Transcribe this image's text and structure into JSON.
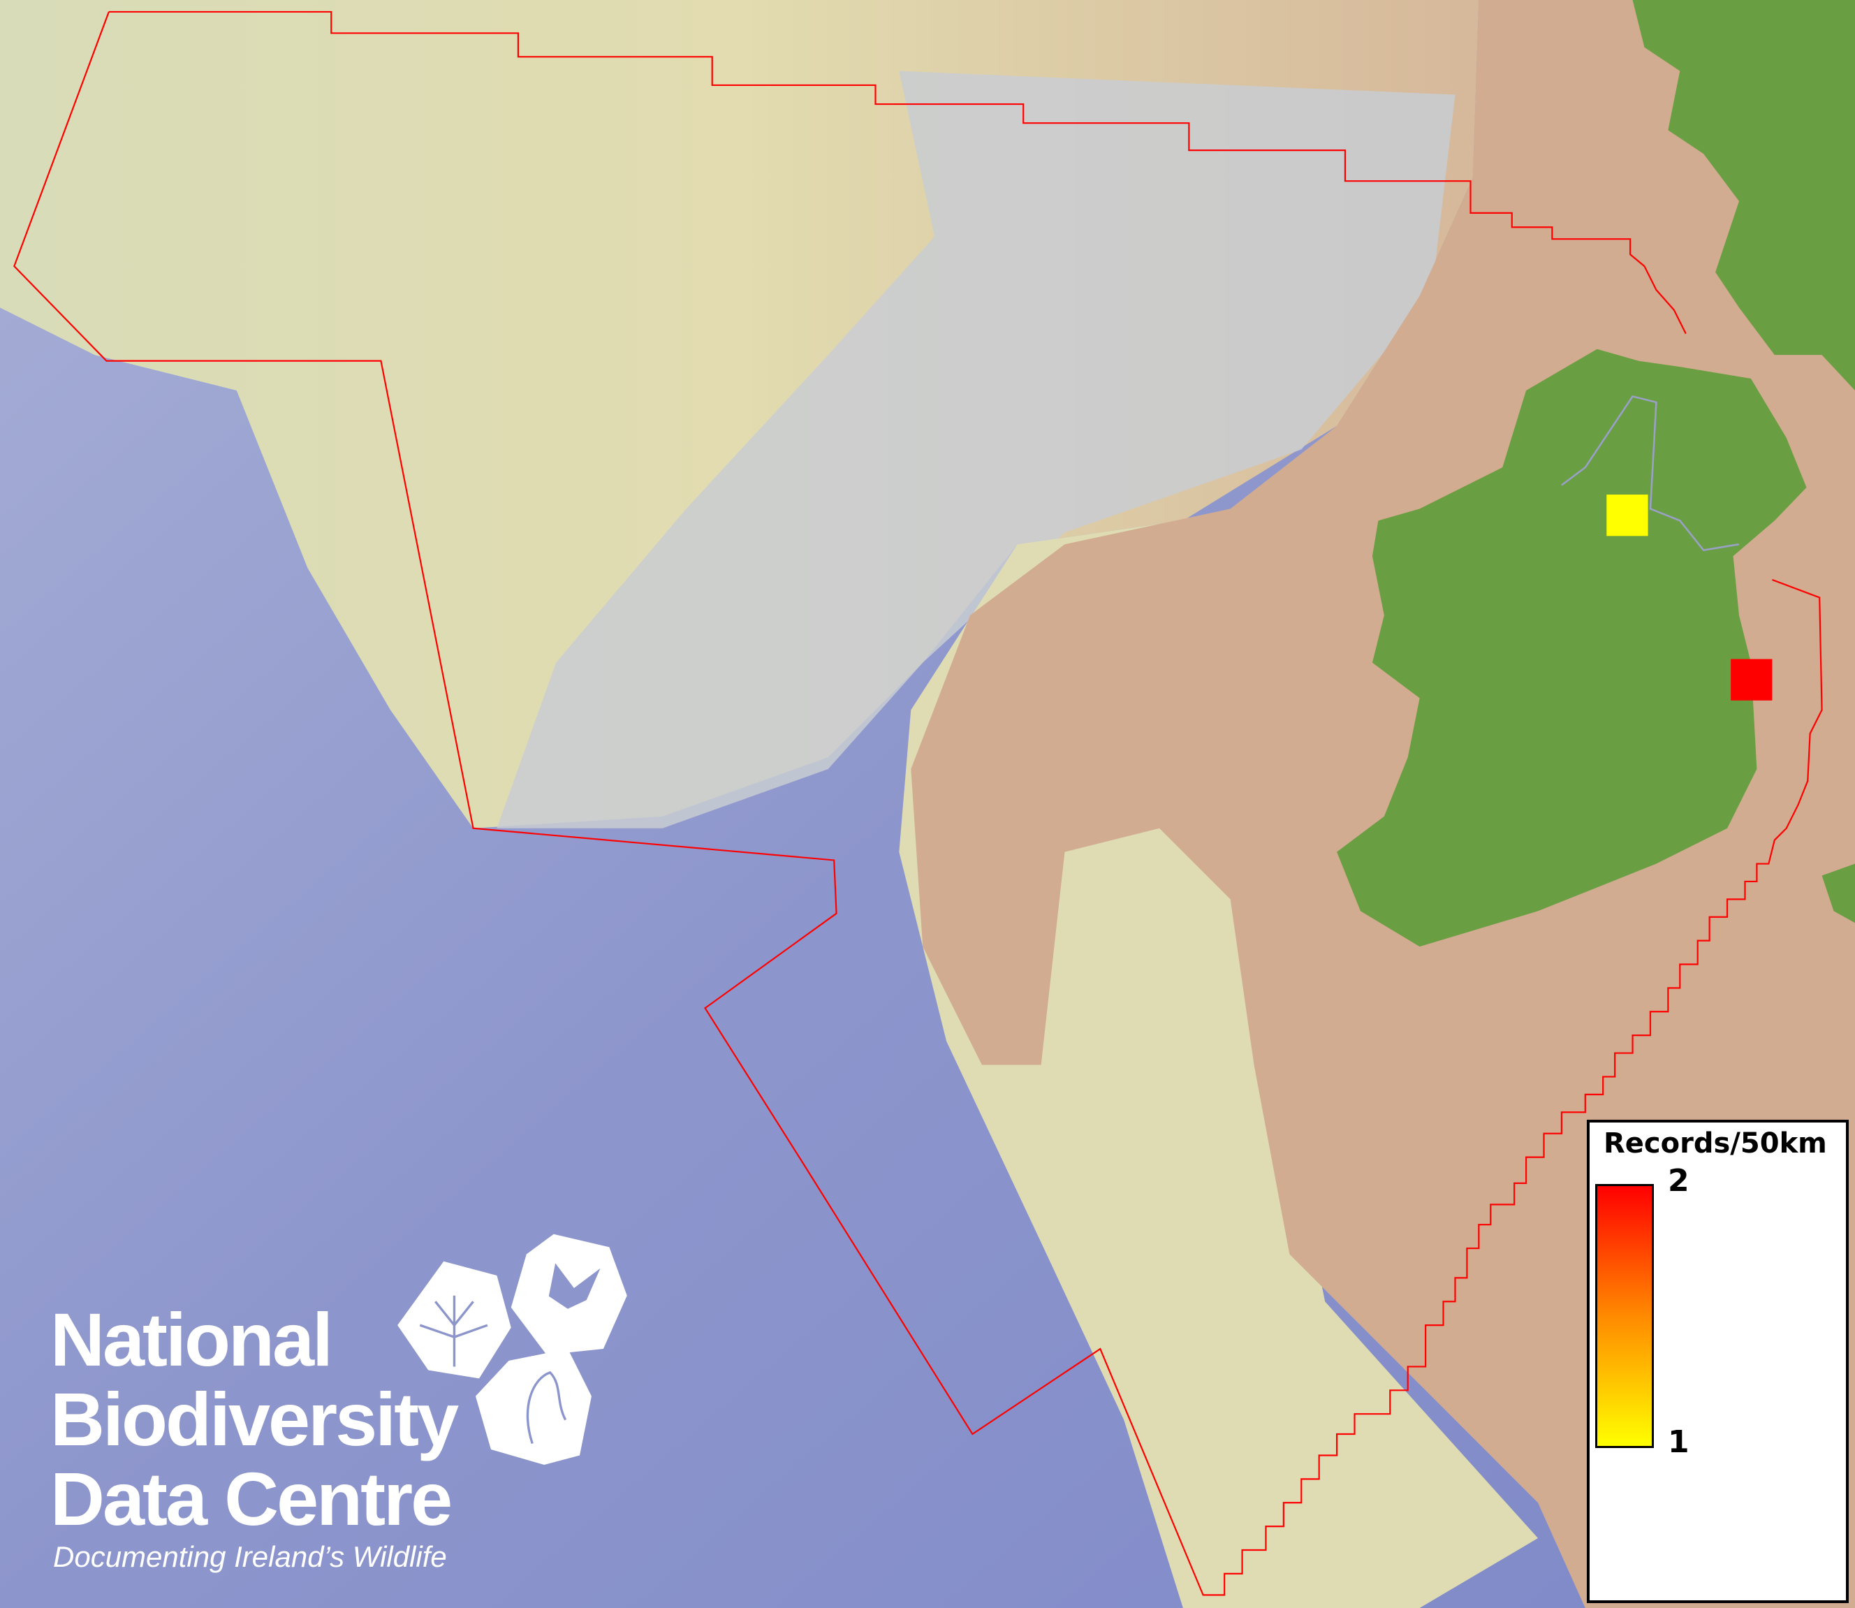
{
  "map": {
    "colors": {
      "deep_ocean": "#8a93cc",
      "shelf_light": "#dddcb0",
      "slope_grey": "#c9ccd2",
      "land_shelf_tan": "#d2ac90",
      "land_green": "#6a9e42",
      "boundary_red": "#ff0000"
    },
    "records": [
      {
        "value": 1,
        "color": "#ffff00"
      },
      {
        "value": 2,
        "color": "#ff0000"
      }
    ]
  },
  "legend": {
    "title": "Records/50km",
    "max_label": "2",
    "min_label": "1",
    "gradient": [
      "#ff0000",
      "#ff8a00",
      "#ffff00"
    ]
  },
  "logo": {
    "line1": "National",
    "line2": "Biodiversity",
    "line3": "Data Centre",
    "tagline": "Documenting Ireland’s Wildlife",
    "icons": [
      "tree-icon",
      "butterfly-icon",
      "seahorse-icon"
    ]
  }
}
